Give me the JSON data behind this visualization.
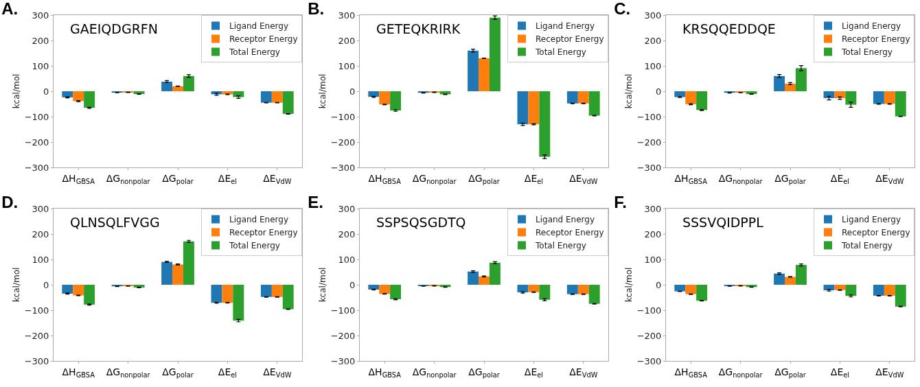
{
  "chart_data": [
    {
      "type": "bar",
      "title": "A.",
      "annotations": [
        "GAEIQDGRFN"
      ],
      "ylabel": "kcal/mol",
      "categories": [
        "ΔH$_{GBSA}$",
        "ΔG$_{nonpolar}$",
        "ΔG$_{polar}$",
        "ΔE$_{el}$",
        "ΔE$_{VdW}$"
      ],
      "ylim": [
        -300,
        300
      ],
      "yticks": [
        -300,
        -200,
        -100,
        0,
        100,
        200,
        300
      ],
      "grid": false,
      "legend": "top right",
      "series": [
        {
          "name": "Ligand Energy",
          "color": "#1f77b4",
          "values": [
            -24,
            -5,
            38,
            -12,
            -45
          ],
          "errors": [
            2,
            1,
            4,
            4,
            1
          ]
        },
        {
          "name": "Receptor Energy",
          "color": "#ff7f0e",
          "values": [
            -39,
            -4,
            20,
            -12,
            -45
          ],
          "errors": [
            2,
            1,
            1,
            1,
            1
          ]
        },
        {
          "name": "Total Energy",
          "color": "#2ca02c",
          "values": [
            -65,
            -11,
            60,
            -23,
            -89
          ],
          "errors": [
            2,
            1,
            5,
            5,
            1
          ]
        }
      ]
    },
    {
      "type": "bar",
      "title": "B.",
      "annotations": [
        "GETEQKRIRK"
      ],
      "ylabel": "kcal/mol",
      "categories": [
        "ΔH$_{GBSA}$",
        "ΔG$_{nonpolar}$",
        "ΔG$_{polar}$",
        "ΔE$_{el}$",
        "ΔE$_{VdW}$"
      ],
      "ylim": [
        -300,
        300
      ],
      "yticks": [
        -300,
        -200,
        -100,
        0,
        100,
        200,
        300
      ],
      "grid": false,
      "legend": "top right",
      "series": [
        {
          "name": "Ligand Energy",
          "color": "#1f77b4",
          "values": [
            -22,
            -6,
            160,
            -130,
            -48
          ],
          "errors": [
            2,
            1,
            6,
            5,
            1
          ]
        },
        {
          "name": "Receptor Energy",
          "color": "#ff7f0e",
          "values": [
            -52,
            -4,
            130,
            -130,
            -48
          ],
          "errors": [
            1,
            1,
            1,
            2,
            1
          ]
        },
        {
          "name": "Total Energy",
          "color": "#2ca02c",
          "values": [
            -76,
            -12,
            290,
            -258,
            -96
          ],
          "errors": [
            3,
            1,
            7,
            7,
            1
          ]
        }
      ]
    },
    {
      "type": "bar",
      "title": "C.",
      "annotations": [
        "KRSQQEDDQE"
      ],
      "ylabel": "kcal/mol",
      "categories": [
        "ΔH$_{GBSA}$",
        "ΔG$_{nonpolar}$",
        "ΔG$_{polar}$",
        "ΔE$_{el}$",
        "ΔE$_{VdW}$"
      ],
      "ylim": [
        -300,
        300
      ],
      "yticks": [
        -300,
        -200,
        -100,
        0,
        100,
        200,
        300
      ],
      "grid": false,
      "legend": "top right",
      "series": [
        {
          "name": "Ligand Energy",
          "color": "#1f77b4",
          "values": [
            -23,
            -6,
            60,
            -27,
            -50
          ],
          "errors": [
            2,
            1,
            6,
            7,
            1
          ]
        },
        {
          "name": "Receptor Energy",
          "color": "#ff7f0e",
          "values": [
            -51,
            -5,
            30,
            -27,
            -50
          ],
          "errors": [
            2,
            1,
            4,
            5,
            1
          ]
        },
        {
          "name": "Total Energy",
          "color": "#2ca02c",
          "values": [
            -74,
            -11,
            91,
            -53,
            -99
          ],
          "errors": [
            2,
            1,
            10,
            10,
            1
          ]
        }
      ]
    },
    {
      "type": "bar",
      "title": "D.",
      "annotations": [
        "QLNSQLFVGG"
      ],
      "ylabel": "kcal/mol",
      "categories": [
        "ΔH$_{GBSA}$",
        "ΔG$_{nonpolar}$",
        "ΔG$_{polar}$",
        "ΔE$_{el}$",
        "ΔE$_{VdW}$"
      ],
      "ylim": [
        -300,
        300
      ],
      "yticks": [
        -300,
        -200,
        -100,
        0,
        100,
        200,
        300
      ],
      "grid": false,
      "legend": "top right",
      "series": [
        {
          "name": "Ligand Energy",
          "color": "#1f77b4",
          "values": [
            -35,
            -6,
            90,
            -71,
            -48
          ],
          "errors": [
            2,
            1,
            2,
            2,
            1
          ]
        },
        {
          "name": "Receptor Energy",
          "color": "#ff7f0e",
          "values": [
            -42,
            -5,
            80,
            -71,
            -48
          ],
          "errors": [
            1,
            1,
            2,
            1,
            1
          ]
        },
        {
          "name": "Total Energy",
          "color": "#2ca02c",
          "values": [
            -78,
            -11,
            171,
            -141,
            -96
          ],
          "errors": [
            2,
            1,
            4,
            5,
            1
          ]
        }
      ]
    },
    {
      "type": "bar",
      "title": "E.",
      "annotations": [
        "SSPSQSGDTQ"
      ],
      "ylabel": "kcal/mol",
      "categories": [
        "ΔH$_{GBSA}$",
        "ΔG$_{nonpolar}$",
        "ΔG$_{polar}$",
        "ΔE$_{el}$",
        "ΔE$_{VdW}$"
      ],
      "ylim": [
        -300,
        300
      ],
      "yticks": [
        -300,
        -200,
        -100,
        0,
        100,
        200,
        300
      ],
      "grid": false,
      "legend": "top right",
      "series": [
        {
          "name": "Ligand Energy",
          "color": "#1f77b4",
          "values": [
            -19,
            -5,
            52,
            -30,
            -37
          ],
          "errors": [
            2,
            1,
            3,
            3,
            1
          ]
        },
        {
          "name": "Receptor Energy",
          "color": "#ff7f0e",
          "values": [
            -36,
            -4,
            33,
            -29,
            -37
          ],
          "errors": [
            1,
            1,
            2,
            1,
            1
          ]
        },
        {
          "name": "Total Energy",
          "color": "#2ca02c",
          "values": [
            -57,
            -9,
            87,
            -59,
            -75
          ],
          "errors": [
            2,
            1,
            4,
            4,
            1
          ]
        }
      ]
    },
    {
      "type": "bar",
      "title": "F.",
      "annotations": [
        "SSSVQIDPPL"
      ],
      "ylabel": "kcal/mol",
      "categories": [
        "ΔH$_{GBSA}$",
        "ΔG$_{nonpolar}$",
        "ΔG$_{polar}$",
        "ΔE$_{el}$",
        "ΔE$_{VdW}$"
      ],
      "ylim": [
        -300,
        300
      ],
      "yticks": [
        -300,
        -200,
        -100,
        0,
        100,
        200,
        300
      ],
      "grid": false,
      "legend": "top right",
      "series": [
        {
          "name": "Ligand Energy",
          "color": "#1f77b4",
          "values": [
            -26,
            -5,
            44,
            -22,
            -43
          ],
          "errors": [
            1,
            1,
            3,
            3,
            1
          ]
        },
        {
          "name": "Receptor Energy",
          "color": "#ff7f0e",
          "values": [
            -37,
            -4,
            31,
            -21,
            -43
          ],
          "errors": [
            1,
            1,
            1,
            1,
            1
          ]
        },
        {
          "name": "Total Energy",
          "color": "#2ca02c",
          "values": [
            -63,
            -9,
            78,
            -44,
            -86
          ],
          "errors": [
            1,
            1,
            4,
            4,
            1
          ]
        }
      ]
    }
  ]
}
